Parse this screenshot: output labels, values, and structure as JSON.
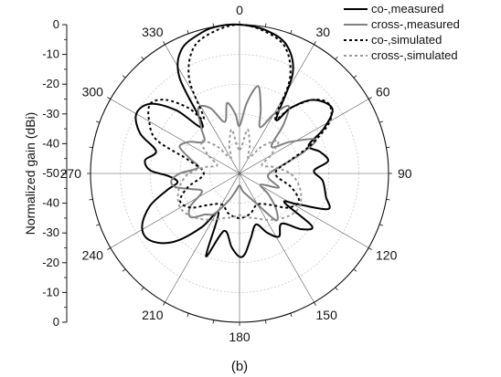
{
  "chart_data": {
    "type": "polar",
    "caption": "(b)",
    "radial_axis": {
      "label": "Normalized gain (dBi)",
      "range": [
        -50,
        0
      ],
      "ticks_upper": [
        "0",
        "-10",
        "-20",
        "-30",
        "-40",
        "-50"
      ],
      "ticks_lower": [
        "-40",
        "-30",
        "-20",
        "-10",
        "0"
      ]
    },
    "angular_axis": {
      "direction": "clockwise",
      "zero": "top",
      "ticks": [
        {
          "deg": 0,
          "label": "0"
        },
        {
          "deg": 30,
          "label": "30"
        },
        {
          "deg": 60,
          "label": "60"
        },
        {
          "deg": 90,
          "label": "90"
        },
        {
          "deg": 120,
          "label": "120"
        },
        {
          "deg": 150,
          "label": "150"
        },
        {
          "deg": 180,
          "label": "180"
        },
        {
          "deg": 210,
          "label": "210"
        },
        {
          "deg": 240,
          "label": "240"
        },
        {
          "deg": 270,
          "label": "270"
        },
        {
          "deg": 300,
          "label": "300"
        },
        {
          "deg": 330,
          "label": "330"
        }
      ]
    },
    "grid": true,
    "legend": "top-right",
    "series": [
      {
        "name": "co-,measured",
        "color": "#000000",
        "style": "solid",
        "points": [
          [
            0,
            0
          ],
          [
            10,
            -1
          ],
          [
            20,
            -4
          ],
          [
            28,
            -12
          ],
          [
            34,
            -28
          ],
          [
            38,
            -22
          ],
          [
            45,
            -15
          ],
          [
            55,
            -12
          ],
          [
            62,
            -18
          ],
          [
            68,
            -25
          ],
          [
            75,
            -22
          ],
          [
            82,
            -20
          ],
          [
            88,
            -25
          ],
          [
            95,
            -22
          ],
          [
            105,
            -20
          ],
          [
            112,
            -18
          ],
          [
            118,
            -28
          ],
          [
            123,
            -32
          ],
          [
            126,
            -20
          ],
          [
            132,
            -22
          ],
          [
            140,
            -28
          ],
          [
            148,
            -25
          ],
          [
            155,
            -28
          ],
          [
            162,
            -32
          ],
          [
            170,
            -28
          ],
          [
            176,
            -23
          ],
          [
            180,
            -22
          ],
          [
            186,
            -25
          ],
          [
            195,
            -30
          ],
          [
            202,
            -20
          ],
          [
            208,
            -35
          ],
          [
            215,
            -28
          ],
          [
            222,
            -20
          ],
          [
            228,
            -15
          ],
          [
            235,
            -12
          ],
          [
            242,
            -13
          ],
          [
            250,
            -18
          ],
          [
            257,
            -25
          ],
          [
            262,
            -29
          ],
          [
            268,
            -26
          ],
          [
            272,
            -20
          ],
          [
            278,
            -18
          ],
          [
            285,
            -21
          ],
          [
            292,
            -14
          ],
          [
            300,
            -10
          ],
          [
            308,
            -12
          ],
          [
            315,
            -20
          ],
          [
            322,
            -30
          ],
          [
            328,
            -12
          ],
          [
            335,
            -4
          ],
          [
            345,
            -1
          ],
          [
            352,
            0
          ]
        ]
      },
      {
        "name": "cross-,measured",
        "color": "#808080",
        "style": "solid",
        "points": [
          [
            0,
            -34
          ],
          [
            6,
            -26
          ],
          [
            12,
            -20
          ],
          [
            18,
            -27
          ],
          [
            24,
            -33
          ],
          [
            30,
            -27
          ],
          [
            36,
            -22
          ],
          [
            42,
            -28
          ],
          [
            50,
            -36
          ],
          [
            58,
            -30
          ],
          [
            66,
            -22
          ],
          [
            72,
            -28
          ],
          [
            80,
            -36
          ],
          [
            90,
            -40
          ],
          [
            100,
            -40
          ],
          [
            110,
            -36
          ],
          [
            118,
            -42
          ],
          [
            126,
            -38
          ],
          [
            134,
            -33
          ],
          [
            142,
            -30
          ],
          [
            150,
            -38
          ],
          [
            160,
            -42
          ],
          [
            170,
            -44
          ],
          [
            180,
            -46
          ],
          [
            192,
            -44
          ],
          [
            202,
            -40
          ],
          [
            212,
            -34
          ],
          [
            220,
            -32
          ],
          [
            228,
            -28
          ],
          [
            236,
            -30
          ],
          [
            244,
            -36
          ],
          [
            252,
            -33
          ],
          [
            258,
            -28
          ],
          [
            264,
            -27
          ],
          [
            270,
            -30
          ],
          [
            278,
            -36
          ],
          [
            286,
            -33
          ],
          [
            294,
            -28
          ],
          [
            302,
            -30
          ],
          [
            312,
            -34
          ],
          [
            320,
            -30
          ],
          [
            328,
            -24
          ],
          [
            336,
            -26
          ],
          [
            344,
            -32
          ],
          [
            350,
            -26
          ],
          [
            356,
            -30
          ]
        ]
      },
      {
        "name": "co-,simulated",
        "color": "#000000",
        "style": "dotted",
        "points": [
          [
            0,
            0
          ],
          [
            10,
            -1.5
          ],
          [
            20,
            -5
          ],
          [
            28,
            -14
          ],
          [
            33,
            -28
          ],
          [
            38,
            -22
          ],
          [
            45,
            -15
          ],
          [
            52,
            -12
          ],
          [
            60,
            -15
          ],
          [
            68,
            -24
          ],
          [
            75,
            -32
          ],
          [
            90,
            -38
          ],
          [
            105,
            -32
          ],
          [
            115,
            -28
          ],
          [
            125,
            -30
          ],
          [
            135,
            -35
          ],
          [
            150,
            -38
          ],
          [
            165,
            -36
          ],
          [
            180,
            -35
          ],
          [
            195,
            -36
          ],
          [
            210,
            -38
          ],
          [
            225,
            -35
          ],
          [
            235,
            -30
          ],
          [
            245,
            -28
          ],
          [
            255,
            -32
          ],
          [
            270,
            -38
          ],
          [
            285,
            -32
          ],
          [
            292,
            -20
          ],
          [
            300,
            -15
          ],
          [
            308,
            -12
          ],
          [
            315,
            -15
          ],
          [
            322,
            -22
          ],
          [
            327,
            -28
          ],
          [
            332,
            -14
          ],
          [
            340,
            -5
          ],
          [
            350,
            -1.5
          ]
        ]
      },
      {
        "name": "cross-,simulated",
        "color": "#999999",
        "style": "dotted",
        "points": [
          [
            0,
            -42
          ],
          [
            10,
            -35
          ],
          [
            20,
            -40
          ],
          [
            30,
            -44
          ],
          [
            40,
            -38
          ],
          [
            50,
            -33
          ],
          [
            60,
            -38
          ],
          [
            70,
            -42
          ],
          [
            80,
            -38
          ],
          [
            90,
            -33
          ],
          [
            100,
            -30
          ],
          [
            110,
            -28
          ],
          [
            120,
            -27
          ],
          [
            130,
            -28
          ],
          [
            140,
            -30
          ],
          [
            150,
            -32
          ],
          [
            160,
            -34
          ],
          [
            170,
            -35
          ],
          [
            180,
            -36
          ],
          [
            190,
            -35
          ],
          [
            200,
            -34
          ],
          [
            210,
            -32
          ],
          [
            220,
            -30
          ],
          [
            230,
            -28
          ],
          [
            240,
            -27
          ],
          [
            250,
            -28
          ],
          [
            260,
            -30
          ],
          [
            270,
            -33
          ],
          [
            280,
            -38
          ],
          [
            290,
            -42
          ],
          [
            300,
            -38
          ],
          [
            310,
            -33
          ],
          [
            320,
            -38
          ],
          [
            330,
            -44
          ],
          [
            340,
            -40
          ],
          [
            350,
            -35
          ]
        ]
      }
    ]
  }
}
